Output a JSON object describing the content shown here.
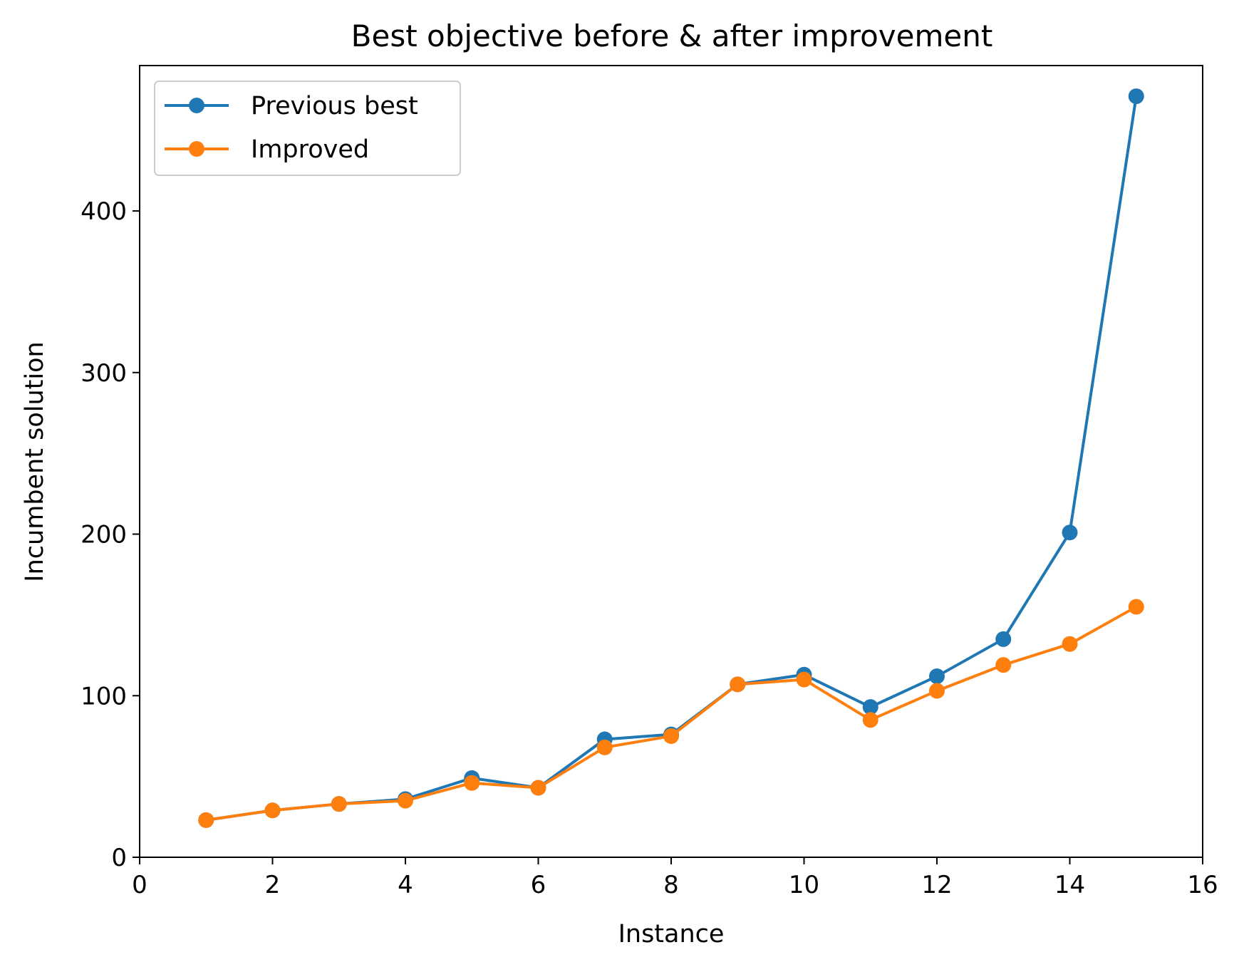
{
  "chart_data": {
    "type": "line",
    "title": "Best objective before & after improvement",
    "xlabel": "Instance",
    "ylabel": "Incumbent solution",
    "xlim": [
      0,
      16
    ],
    "ylim": [
      0,
      490
    ],
    "xticks": [
      0,
      2,
      4,
      6,
      8,
      10,
      12,
      14,
      16
    ],
    "yticks": [
      0,
      100,
      200,
      300,
      400
    ],
    "grid": false,
    "legend_position": "top-left",
    "x": [
      1,
      2,
      3,
      4,
      5,
      6,
      7,
      8,
      9,
      10,
      11,
      12,
      13,
      14,
      15
    ],
    "series": [
      {
        "name": "Previous best",
        "color": "#1f77b4",
        "marker": "circle",
        "values": [
          23,
          29,
          33,
          36,
          49,
          43,
          73,
          76,
          107,
          113,
          93,
          112,
          135,
          201,
          471
        ]
      },
      {
        "name": "Improved",
        "color": "#ff7f0e",
        "marker": "circle",
        "values": [
          23,
          29,
          33,
          35,
          46,
          43,
          68,
          75,
          107,
          110,
          85,
          103,
          119,
          132,
          155
        ]
      }
    ]
  }
}
